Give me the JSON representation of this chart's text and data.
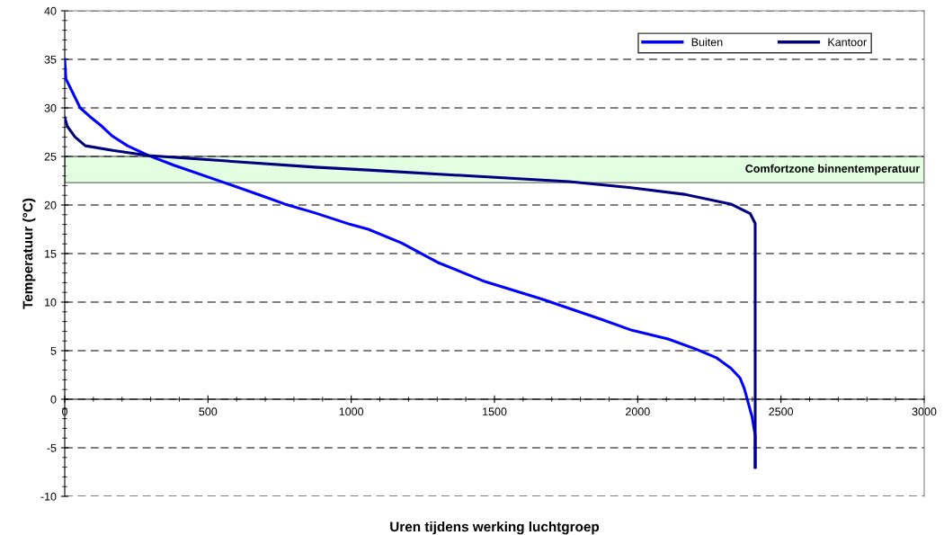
{
  "chart_data": {
    "type": "line",
    "xlabel": "Uren tijdens werking luchtgroep",
    "ylabel": "Temperatuur (°C)",
    "xlim": [
      0,
      3000
    ],
    "xticks": [
      0,
      500,
      1000,
      1500,
      2000,
      2500,
      3000
    ],
    "ylim": [
      -10,
      40
    ],
    "yticks": [
      -10,
      -5,
      0,
      5,
      10,
      15,
      20,
      25,
      30,
      35,
      40
    ],
    "grid": "y",
    "legend": "top right",
    "line_style": "solid",
    "marker": "none",
    "series": [
      {
        "name": "Buiten",
        "color": "#0000ff",
        "x": [
          0,
          4,
          54,
          88,
          130,
          166,
          219,
          292,
          381,
          548,
          684,
          768,
          872,
          997,
          1060,
          1175,
          1301,
          1468,
          1667,
          1876,
          1980,
          2106,
          2200,
          2273,
          2325,
          2357,
          2372,
          2399,
          2410,
          2410
        ],
        "values": [
          35,
          33,
          30,
          29.1,
          28.1,
          27.1,
          26.1,
          25.1,
          24.1,
          22.4,
          21,
          20.1,
          19.2,
          18,
          17.5,
          16.1,
          14.1,
          12.1,
          10.3,
          8.2,
          7.1,
          6.2,
          5.2,
          4.3,
          3.2,
          2.2,
          1.1,
          -1.8,
          -3.7,
          -7
        ]
      },
      {
        "name": "Kantoor",
        "color": "#000080",
        "x": [
          0,
          9,
          36,
          72,
          172,
          292,
          872,
          1060,
          1761,
          1970,
          2163,
          2325,
          2393,
          2410,
          2410
        ],
        "values": [
          29,
          28.1,
          27,
          26.1,
          25.6,
          25.1,
          23.9,
          23.6,
          22.4,
          21.8,
          21.1,
          20.1,
          19.1,
          18.1,
          -7
        ]
      }
    ],
    "bands": [
      {
        "axis": "y",
        "from": 22.3,
        "to": 25,
        "label": "Comfortzone binnentemperatuur",
        "color": "#ccffcc"
      }
    ]
  }
}
